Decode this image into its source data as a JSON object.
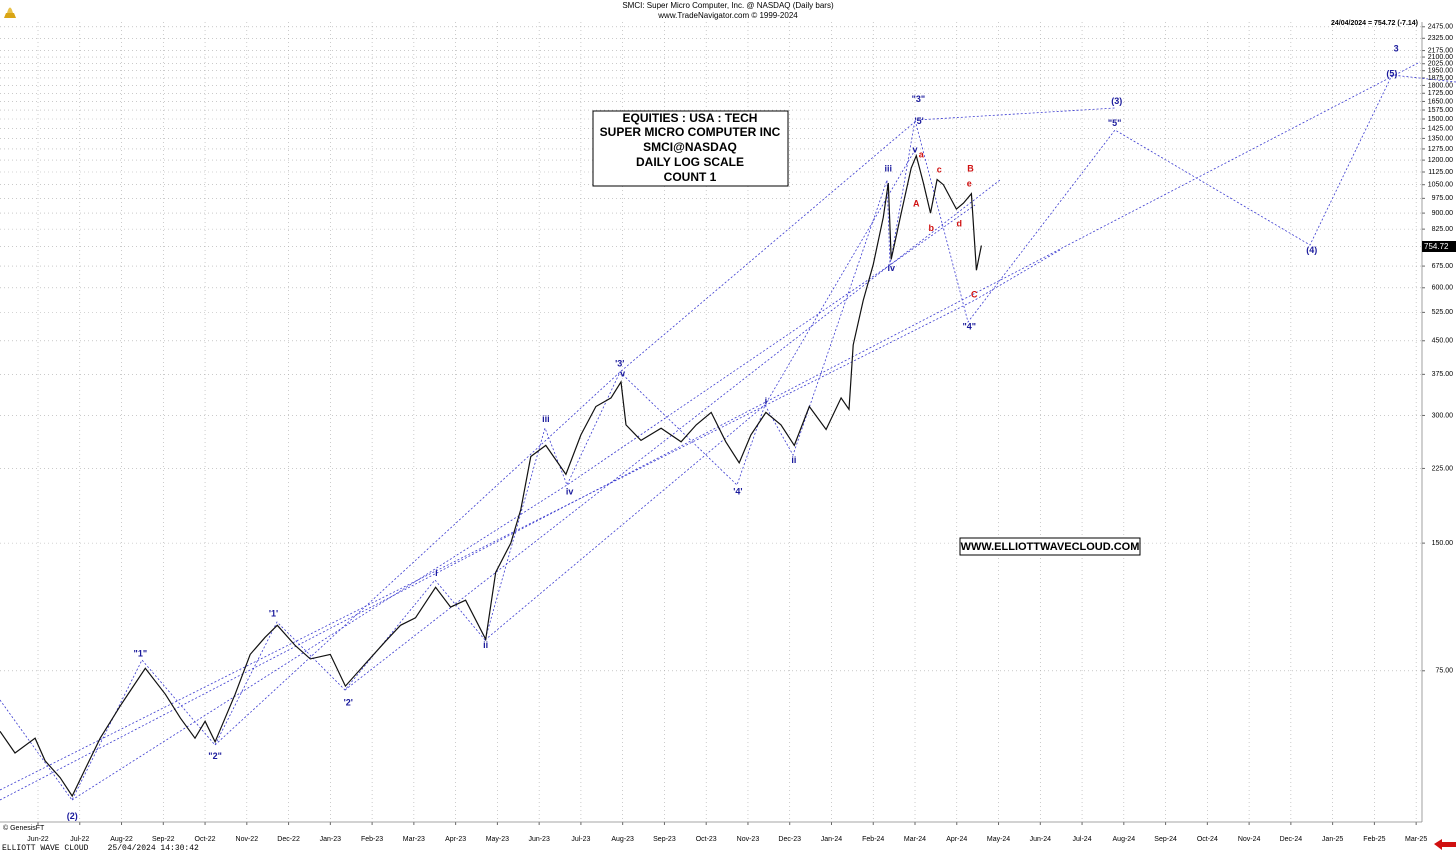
{
  "chart_data": {
    "type": "line",
    "title": "SMCI:  Super Micro Computer, Inc. @ NASDAQ  (Daily bars)",
    "subtitle": "www.TradeNavigator.com © 1999-2024",
    "last_quote": "24/04/2024 = 754.72 (-7.14)",
    "last_price_label": "754.72",
    "info_box": [
      "EQUITIES : USA : TECH",
      "SUPER MICRO COMPUTER INC",
      "SMCI@NASDAQ",
      "DAILY LOG SCALE",
      "COUNT 1"
    ],
    "website": "WWW.ELLIOTTWAVECLOUD.COM",
    "credit": "© GenesisFT",
    "footer": "ELLIOTT WAVE CLOUD    25/04/2024 14:30:42",
    "log_scale": true,
    "grid": true,
    "xlim": [
      -0.91,
      33.14
    ],
    "ylim": [
      33,
      2540
    ],
    "xticks": [
      {
        "value": 0,
        "label": "Jun-22"
      },
      {
        "value": 1,
        "label": "Jul-22"
      },
      {
        "value": 2,
        "label": "Aug-22"
      },
      {
        "value": 3,
        "label": "Sep-22"
      },
      {
        "value": 4,
        "label": "Oct-22"
      },
      {
        "value": 5,
        "label": "Nov-22"
      },
      {
        "value": 6,
        "label": "Dec-22"
      },
      {
        "value": 7,
        "label": "Jan-23"
      },
      {
        "value": 8,
        "label": "Feb-23"
      },
      {
        "value": 9,
        "label": "Mar-23"
      },
      {
        "value": 10,
        "label": "Apr-23"
      },
      {
        "value": 11,
        "label": "May-23"
      },
      {
        "value": 12,
        "label": "Jun-23"
      },
      {
        "value": 13,
        "label": "Jul-23"
      },
      {
        "value": 14,
        "label": "Aug-23"
      },
      {
        "value": 15,
        "label": "Sep-23"
      },
      {
        "value": 16,
        "label": "Oct-23"
      },
      {
        "value": 17,
        "label": "Nov-23"
      },
      {
        "value": 18,
        "label": "Dec-23"
      },
      {
        "value": 19,
        "label": "Jan-24"
      },
      {
        "value": 20,
        "label": "Feb-24"
      },
      {
        "value": 21,
        "label": "Mar-24"
      },
      {
        "value": 22,
        "label": "Apr-24"
      },
      {
        "value": 23,
        "label": "May-24"
      },
      {
        "value": 24,
        "label": "Jun-24"
      },
      {
        "value": 25,
        "label": "Jul-24"
      },
      {
        "value": 26,
        "label": "Aug-24"
      },
      {
        "value": 27,
        "label": "Sep-24"
      },
      {
        "value": 28,
        "label": "Oct-24"
      },
      {
        "value": 29,
        "label": "Nov-24"
      },
      {
        "value": 30,
        "label": "Dec-24"
      },
      {
        "value": 31,
        "label": "Jan-25"
      },
      {
        "value": 32,
        "label": "Feb-25"
      },
      {
        "value": 33,
        "label": "Mar-25"
      }
    ],
    "yticks": [
      {
        "value": 2475,
        "label": "2475.00"
      },
      {
        "value": 2325,
        "label": "2325.00"
      },
      {
        "value": 2175,
        "label": "2175.00"
      },
      {
        "value": 2100,
        "label": "2100.00"
      },
      {
        "value": 2025,
        "label": "2025.00"
      },
      {
        "value": 1950,
        "label": "1950.00"
      },
      {
        "value": 1875,
        "label": "1875.00"
      },
      {
        "value": 1800,
        "label": "1800.00"
      },
      {
        "value": 1725,
        "label": "1725.00"
      },
      {
        "value": 1650,
        "label": "1650.00"
      },
      {
        "value": 1575,
        "label": "1575.00"
      },
      {
        "value": 1500,
        "label": "1500.00"
      },
      {
        "value": 1425,
        "label": "1425.00"
      },
      {
        "value": 1350,
        "label": "1350.00"
      },
      {
        "value": 1275,
        "label": "1275.00"
      },
      {
        "value": 1200,
        "label": "1200.00"
      },
      {
        "value": 1125,
        "label": "1125.00"
      },
      {
        "value": 1050,
        "label": "1050.00"
      },
      {
        "value": 975,
        "label": "975.00"
      },
      {
        "value": 900,
        "label": "900.00"
      },
      {
        "value": 825,
        "label": "825.00"
      },
      {
        "value": 750,
        "label": "750.00"
      },
      {
        "value": 675,
        "label": "675.00"
      },
      {
        "value": 600,
        "label": "600.00"
      },
      {
        "value": 525,
        "label": "525.00"
      },
      {
        "value": 450,
        "label": "450.00"
      },
      {
        "value": 375,
        "label": "375.00"
      },
      {
        "value": 300,
        "label": "300.00"
      },
      {
        "value": 225,
        "label": "225.00"
      },
      {
        "value": 150,
        "label": "150.00"
      },
      {
        "value": 75,
        "label": "75.00"
      }
    ],
    "series": [
      {
        "name": "SMCI",
        "color": "#111111",
        "x": [
          -0.91,
          -0.55,
          -0.07,
          0.17,
          0.53,
          0.82,
          1.13,
          1.49,
          1.97,
          2.57,
          3.05,
          3.41,
          3.76,
          4.0,
          4.24,
          4.72,
          5.08,
          5.44,
          5.73,
          6.16,
          6.52,
          7.0,
          7.36,
          7.84,
          8.32,
          8.68,
          9.04,
          9.52,
          9.88,
          10.24,
          10.72,
          10.96,
          11.32,
          11.56,
          11.8,
          12.16,
          12.64,
          13.0,
          13.36,
          13.72,
          13.96,
          14.08,
          14.44,
          14.92,
          15.4,
          15.76,
          16.12,
          16.47,
          16.79,
          17.07,
          17.43,
          17.79,
          18.11,
          18.47,
          18.87,
          19.23,
          19.42,
          19.52,
          19.76,
          20.0,
          20.24,
          20.36,
          20.43,
          20.67,
          20.91,
          21.03,
          21.2,
          21.37,
          21.53,
          21.68,
          21.99,
          22.16,
          22.35,
          22.47,
          22.59
        ],
        "values": [
          54,
          48,
          52,
          46,
          42,
          38,
          44,
          52,
          62,
          76,
          66,
          58,
          52,
          57,
          51,
          66,
          82,
          90,
          96,
          86,
          80,
          82,
          69,
          78,
          88,
          96,
          100,
          118,
          106,
          110,
          89,
          128,
          150,
          180,
          240,
          255,
          218,
          270,
          315,
          330,
          360,
          285,
          262,
          280,
          260,
          285,
          305,
          260,
          232,
          270,
          305,
          285,
          255,
          315,
          278,
          330,
          310,
          440,
          560,
          680,
          880,
          1060,
          700,
          900,
          1150,
          1229,
          1060,
          900,
          1080,
          1050,
          920,
          950,
          1000,
          660,
          754.72
        ]
      }
    ],
    "annotations": [
      {
        "text": "(2)",
        "x": 0.82,
        "y": 34,
        "color": "#1a1a9c"
      },
      {
        "text": "\"1\"",
        "x": 2.45,
        "y": 82,
        "color": "#1a1a9c"
      },
      {
        "text": "\"2\"",
        "x": 4.24,
        "y": 47,
        "color": "#1a1a9c"
      },
      {
        "text": "'1'",
        "x": 5.64,
        "y": 102,
        "color": "#1a1a9c"
      },
      {
        "text": "'2'",
        "x": 7.43,
        "y": 63,
        "color": "#1a1a9c"
      },
      {
        "text": "i",
        "x": 9.54,
        "y": 127,
        "color": "#1a1a9c"
      },
      {
        "text": "ii",
        "x": 10.72,
        "y": 86,
        "color": "#1a1a9c"
      },
      {
        "text": "iii",
        "x": 12.16,
        "y": 293,
        "color": "#1a1a9c"
      },
      {
        "text": "iv",
        "x": 12.73,
        "y": 198,
        "color": "#1a1a9c"
      },
      {
        "text": "'3'",
        "x": 13.93,
        "y": 396,
        "color": "#1a1a9c"
      },
      {
        "text": "v",
        "x": 14.0,
        "y": 375,
        "color": "#1a1a9c"
      },
      {
        "text": "'4'",
        "x": 16.76,
        "y": 198,
        "color": "#1a1a9c"
      },
      {
        "text": "i",
        "x": 17.43,
        "y": 323,
        "color": "#1a1a9c"
      },
      {
        "text": "ii",
        "x": 18.1,
        "y": 235,
        "color": "#1a1a9c"
      },
      {
        "text": "iii",
        "x": 20.36,
        "y": 1143,
        "color": "#1a1a9c"
      },
      {
        "text": "iv",
        "x": 20.43,
        "y": 665,
        "color": "#1a1a9c"
      },
      {
        "text": "v",
        "x": 21.0,
        "y": 1268,
        "color": "#1a1a9c"
      },
      {
        "text": "\"3\"",
        "x": 21.08,
        "y": 1668,
        "color": "#1a1a9c"
      },
      {
        "text": "'5'",
        "x": 21.1,
        "y": 1478,
        "color": "#1a1a9c"
      },
      {
        "text": "a",
        "x": 21.15,
        "y": 1234,
        "color": "#d01010"
      },
      {
        "text": "A",
        "x": 21.03,
        "y": 944,
        "color": "#d01010"
      },
      {
        "text": "b",
        "x": 21.39,
        "y": 828,
        "color": "#d01010"
      },
      {
        "text": "c",
        "x": 21.58,
        "y": 1136,
        "color": "#d01010"
      },
      {
        "text": "d",
        "x": 22.06,
        "y": 847,
        "color": "#d01010"
      },
      {
        "text": "e",
        "x": 22.3,
        "y": 1054,
        "color": "#d01010"
      },
      {
        "text": "B",
        "x": 22.33,
        "y": 1143,
        "color": "#d01010"
      },
      {
        "text": "C",
        "x": 22.42,
        "y": 577,
        "color": "#d01010"
      },
      {
        "text": "\"4\"",
        "x": 22.3,
        "y": 485,
        "color": "#1a1a9c"
      },
      {
        "text": "(3)",
        "x": 25.83,
        "y": 1650,
        "color": "#1a1a9c"
      },
      {
        "text": "\"5\"",
        "x": 25.78,
        "y": 1463,
        "color": "#1a1a9c"
      },
      {
        "text": "(4)",
        "x": 30.5,
        "y": 734,
        "color": "#1a1a9c"
      },
      {
        "text": "3",
        "x": 32.52,
        "y": 2193,
        "color": "#1a1a9c"
      },
      {
        "text": "(5)",
        "x": 32.42,
        "y": 1912,
        "color": "#1a1a9c"
      }
    ]
  }
}
